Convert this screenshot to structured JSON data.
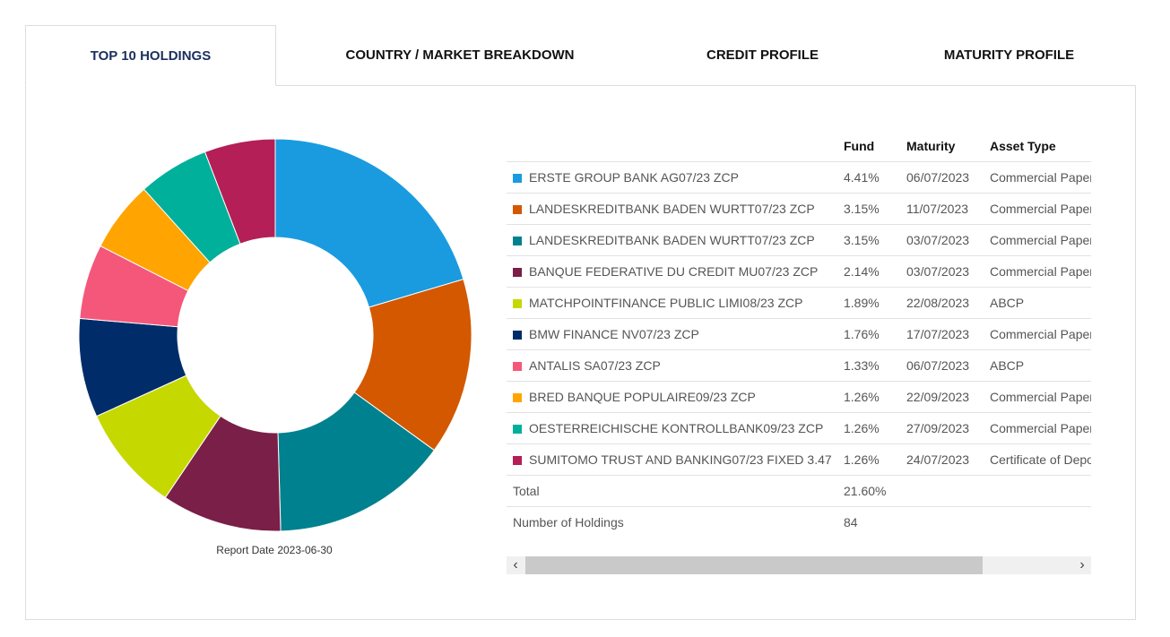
{
  "tabs": [
    {
      "label": "TOP 10 HOLDINGS",
      "active": true
    },
    {
      "label": "COUNTRY / MARKET BREAKDOWN",
      "active": false
    },
    {
      "label": "CREDIT PROFILE",
      "active": false
    },
    {
      "label": "MATURITY PROFILE",
      "active": false
    }
  ],
  "report_date": "Report Date 2023-06-30",
  "table": {
    "headers": {
      "name": "",
      "fund": "Fund",
      "maturity": "Maturity",
      "asset_type": "Asset Type"
    },
    "rows": [
      {
        "name": "ERSTE GROUP BANK AG07/23 ZCP",
        "fund": "4.41%",
        "maturity": "06/07/2023",
        "asset_type": "Commercial Paper",
        "color": "#1a9be0"
      },
      {
        "name": "LANDESKREDITBANK BADEN WURTT07/23 ZCP",
        "fund": "3.15%",
        "maturity": "11/07/2023",
        "asset_type": "Commercial Paper",
        "color": "#d35800"
      },
      {
        "name": "LANDESKREDITBANK BADEN WURTT07/23 ZCP",
        "fund": "3.15%",
        "maturity": "03/07/2023",
        "asset_type": "Commercial Paper",
        "color": "#00818f"
      },
      {
        "name": "BANQUE FEDERATIVE DU CREDIT MU07/23 ZCP",
        "fund": "2.14%",
        "maturity": "03/07/2023",
        "asset_type": "Commercial Paper",
        "color": "#7a1f47"
      },
      {
        "name": "MATCHPOINTFINANCE PUBLIC LIMI08/23 ZCP",
        "fund": "1.89%",
        "maturity": "22/08/2023",
        "asset_type": "ABCP",
        "color": "#c5d800"
      },
      {
        "name": "BMW FINANCE NV07/23 ZCP",
        "fund": "1.76%",
        "maturity": "17/07/2023",
        "asset_type": "Commercial Paper",
        "color": "#002d6a"
      },
      {
        "name": "ANTALIS SA07/23 ZCP",
        "fund": "1.33%",
        "maturity": "06/07/2023",
        "asset_type": "ABCP",
        "color": "#f5577a"
      },
      {
        "name": "BRED BANQUE POPULAIRE09/23 ZCP",
        "fund": "1.26%",
        "maturity": "22/09/2023",
        "asset_type": "Commercial Paper",
        "color": "#ffa400"
      },
      {
        "name": "OESTERREICHISCHE KONTROLLBANK09/23 ZCP",
        "fund": "1.26%",
        "maturity": "27/09/2023",
        "asset_type": "Commercial Paper",
        "color": "#00b09a"
      },
      {
        "name": "SUMITOMO TRUST AND BANKING07/23 FIXED 3.47",
        "fund": "1.26%",
        "maturity": "24/07/2023",
        "asset_type": "Certificate of Deposit",
        "color": "#b31f56"
      }
    ],
    "total": {
      "label": "Total",
      "value": "21.60%"
    },
    "holdings": {
      "label": "Number of Holdings",
      "value": "84"
    }
  },
  "scroll": {
    "left_icon": "‹",
    "right_icon": "›"
  },
  "chart_data": {
    "type": "pie",
    "donut": true,
    "categories": [
      "ERSTE GROUP BANK AG07/23 ZCP",
      "LANDESKREDITBANK BADEN WURTT07/23 ZCP",
      "LANDESKREDITBANK BADEN WURTT07/23 ZCP",
      "BANQUE FEDERATIVE DU CREDIT MU07/23 ZCP",
      "MATCHPOINTFINANCE PUBLIC LIMI08/23 ZCP",
      "BMW FINANCE NV07/23 ZCP",
      "ANTALIS SA07/23 ZCP",
      "BRED BANQUE POPULAIRE09/23 ZCP",
      "OESTERREICHISCHE KONTROLLBANK09/23 ZCP",
      "SUMITOMO TRUST AND BANKING07/23 FIXED 3.47"
    ],
    "values": [
      4.41,
      3.15,
      3.15,
      2.14,
      1.89,
      1.76,
      1.33,
      1.26,
      1.26,
      1.26
    ],
    "colors": [
      "#1a9be0",
      "#d35800",
      "#00818f",
      "#7a1f47",
      "#c5d800",
      "#002d6a",
      "#f5577a",
      "#ffa400",
      "#00b09a",
      "#b31f56"
    ]
  }
}
